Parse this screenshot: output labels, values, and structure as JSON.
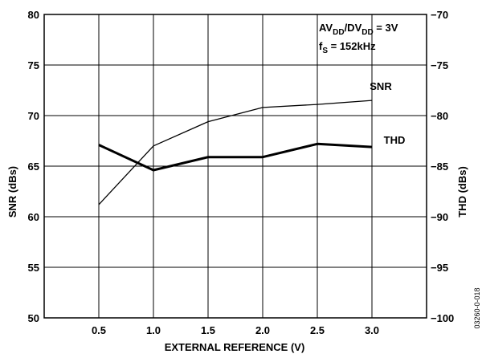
{
  "chart_data": {
    "type": "line",
    "xlabel": "EXTERNAL REFERENCE (V)",
    "ylabel": "SNR (dBs)",
    "y2label": "THD (dBs)",
    "x": [
      0.5,
      1.0,
      1.5,
      2.0,
      2.5,
      3.0
    ],
    "xticks": [
      "0.5",
      "1.0",
      "1.5",
      "2.0",
      "2.5",
      "3.0"
    ],
    "xlim": [
      0,
      3.5
    ],
    "ylim": [
      50,
      80
    ],
    "yticks": [
      "50",
      "55",
      "60",
      "65",
      "70",
      "75",
      "80"
    ],
    "y2lim": [
      -100,
      -70
    ],
    "y2ticks": [
      "−70",
      "−75",
      "−80",
      "−85",
      "−90",
      "−95",
      "−100"
    ],
    "grid": true,
    "series": [
      {
        "name": "SNR",
        "axis": "left",
        "values": [
          61.2,
          67.0,
          69.4,
          70.8,
          71.1,
          71.5
        ]
      },
      {
        "name": "THD",
        "axis": "right",
        "values": [
          -82.9,
          -85.4,
          -84.1,
          -84.1,
          -82.8,
          -83.1
        ]
      }
    ],
    "annotation": {
      "line1_main": "AV",
      "line1_sub1": "DD",
      "line1_mid": "/DV",
      "line1_sub2": "DD",
      "line1_end": " = 3V",
      "line2_main": "f",
      "line2_sub": "S",
      "line2_end": " = 152kHz"
    },
    "figure_id": "03260-0-018"
  }
}
